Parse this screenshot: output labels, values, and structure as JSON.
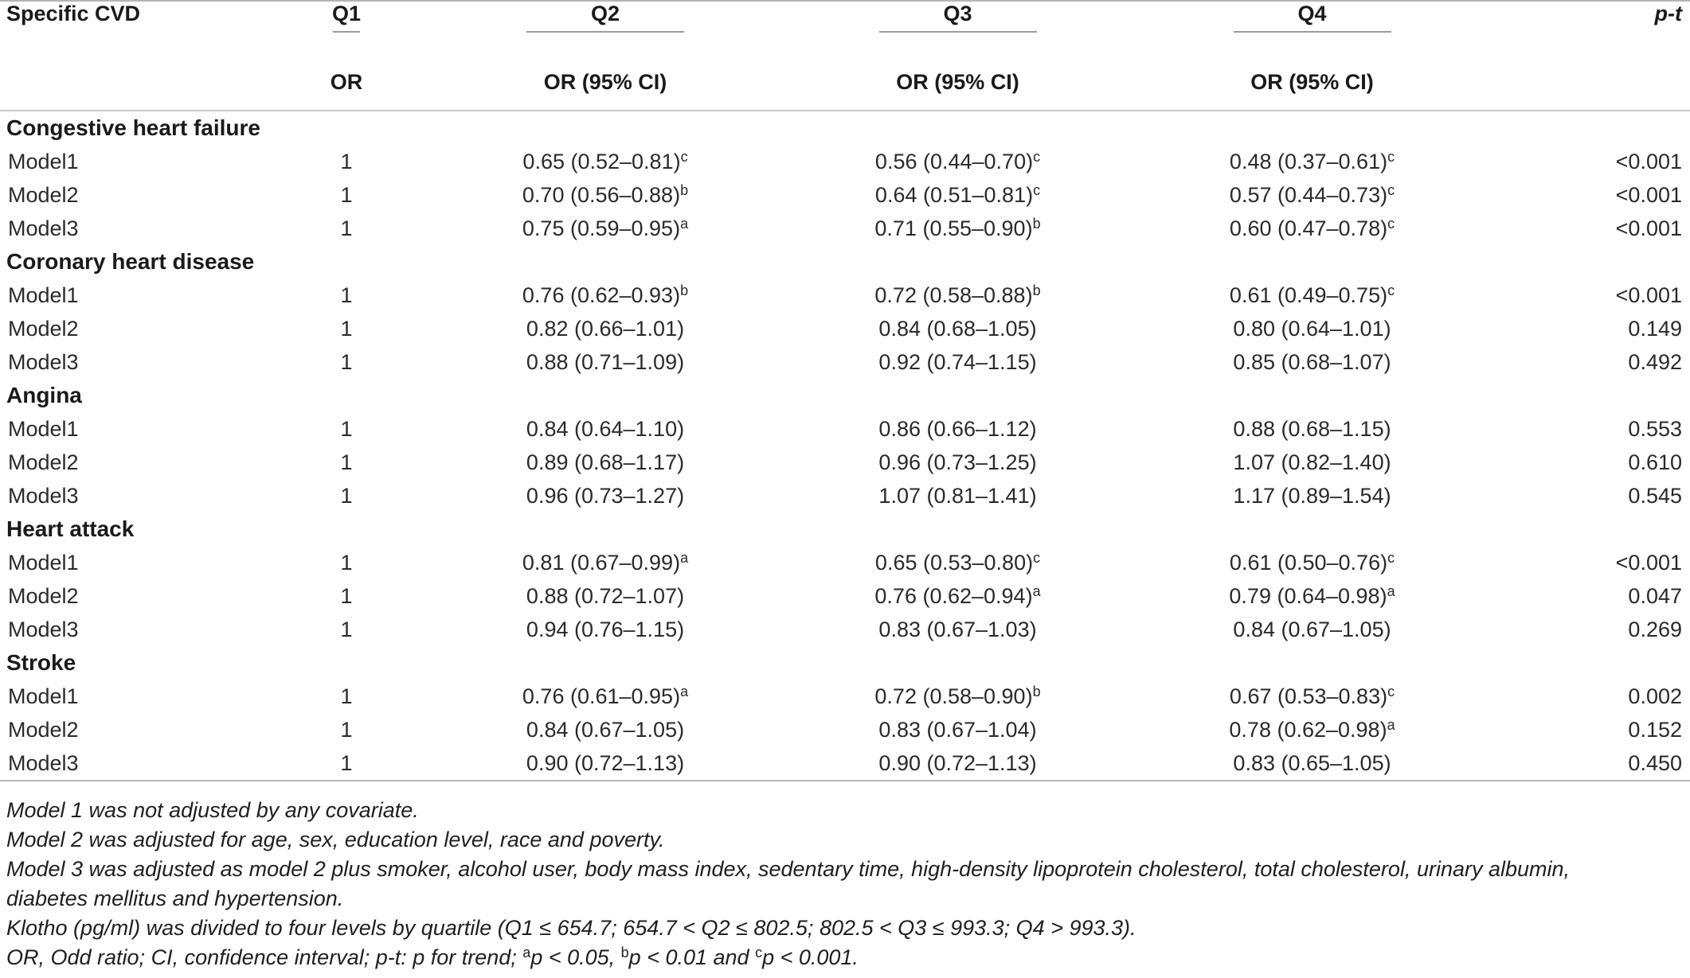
{
  "header": {
    "col_specific": "Specific CVD",
    "q1": "Q1",
    "q2": "Q2",
    "q3": "Q3",
    "q4": "Q4",
    "pt": "p-t",
    "q1_sub": "OR",
    "q2_sub": "OR (95% CI)",
    "q3_sub": "OR (95% CI)",
    "q4_sub": "OR (95% CI)"
  },
  "groups": [
    {
      "name": "Congestive heart failure",
      "rows": [
        {
          "model": "Model1",
          "q1": "1",
          "q2": "0.65 (0.52–0.81)",
          "q2s": "c",
          "q3": "0.56 (0.44–0.70)",
          "q3s": "c",
          "q4": "0.48 (0.37–0.61)",
          "q4s": "c",
          "p": "<0.001"
        },
        {
          "model": "Model2",
          "q1": "1",
          "q2": "0.70 (0.56–0.88)",
          "q2s": "b",
          "q3": "0.64 (0.51–0.81)",
          "q3s": "c",
          "q4": "0.57 (0.44–0.73)",
          "q4s": "c",
          "p": "<0.001"
        },
        {
          "model": "Model3",
          "q1": "1",
          "q2": "0.75 (0.59–0.95)",
          "q2s": "a",
          "q3": "0.71 (0.55–0.90)",
          "q3s": "b",
          "q4": "0.60 (0.47–0.78)",
          "q4s": "c",
          "p": "<0.001"
        }
      ]
    },
    {
      "name": "Coronary heart disease",
      "rows": [
        {
          "model": "Model1",
          "q1": "1",
          "q2": "0.76 (0.62–0.93)",
          "q2s": "b",
          "q3": "0.72 (0.58–0.88)",
          "q3s": "b",
          "q4": "0.61 (0.49–0.75)",
          "q4s": "c",
          "p": "<0.001"
        },
        {
          "model": "Model2",
          "q1": "1",
          "q2": "0.82 (0.66–1.01)",
          "q2s": "",
          "q3": "0.84 (0.68–1.05)",
          "q3s": "",
          "q4": "0.80 (0.64–1.01)",
          "q4s": "",
          "p": "0.149"
        },
        {
          "model": "Model3",
          "q1": "1",
          "q2": "0.88 (0.71–1.09)",
          "q2s": "",
          "q3": "0.92 (0.74–1.15)",
          "q3s": "",
          "q4": "0.85 (0.68–1.07)",
          "q4s": "",
          "p": "0.492"
        }
      ]
    },
    {
      "name": "Angina",
      "rows": [
        {
          "model": "Model1",
          "q1": "1",
          "q2": "0.84 (0.64–1.10)",
          "q2s": "",
          "q3": "0.86 (0.66–1.12)",
          "q3s": "",
          "q4": "0.88 (0.68–1.15)",
          "q4s": "",
          "p": "0.553"
        },
        {
          "model": "Model2",
          "q1": "1",
          "q2": "0.89 (0.68–1.17)",
          "q2s": "",
          "q3": "0.96 (0.73–1.25)",
          "q3s": "",
          "q4": "1.07 (0.82–1.40)",
          "q4s": "",
          "p": "0.610"
        },
        {
          "model": "Model3",
          "q1": "1",
          "q2": "0.96 (0.73–1.27)",
          "q2s": "",
          "q3": "1.07 (0.81–1.41)",
          "q3s": "",
          "q4": "1.17 (0.89–1.54)",
          "q4s": "",
          "p": "0.545"
        }
      ]
    },
    {
      "name": "Heart attack",
      "rows": [
        {
          "model": "Model1",
          "q1": "1",
          "q2": "0.81 (0.67–0.99)",
          "q2s": "a",
          "q3": "0.65 (0.53–0.80)",
          "q3s": "c",
          "q4": "0.61 (0.50–0.76)",
          "q4s": "c",
          "p": "<0.001"
        },
        {
          "model": "Model2",
          "q1": "1",
          "q2": "0.88 (0.72–1.07)",
          "q2s": "",
          "q3": "0.76 (0.62–0.94)",
          "q3s": "a",
          "q4": "0.79 (0.64–0.98)",
          "q4s": "a",
          "p": "0.047"
        },
        {
          "model": "Model3",
          "q1": "1",
          "q2": "0.94 (0.76–1.15)",
          "q2s": "",
          "q3": "0.83 (0.67–1.03)",
          "q3s": "",
          "q4": "0.84 (0.67–1.05)",
          "q4s": "",
          "p": "0.269"
        }
      ]
    },
    {
      "name": "Stroke",
      "rows": [
        {
          "model": "Model1",
          "q1": "1",
          "q2": "0.76 (0.61–0.95)",
          "q2s": "a",
          "q3": "0.72 (0.58–0.90)",
          "q3s": "b",
          "q4": "0.67 (0.53–0.83)",
          "q4s": "c",
          "p": "0.002"
        },
        {
          "model": "Model2",
          "q1": "1",
          "q2": "0.84 (0.67–1.05)",
          "q2s": "",
          "q3": "0.83 (0.67–1.04)",
          "q3s": "",
          "q4": "0.78 (0.62–0.98)",
          "q4s": "a",
          "p": "0.152"
        },
        {
          "model": "Model3",
          "q1": "1",
          "q2": "0.90 (0.72–1.13)",
          "q2s": "",
          "q3": "0.90 (0.72–1.13)",
          "q3s": "",
          "q4": "0.83 (0.65–1.05)",
          "q4s": "",
          "p": "0.450"
        }
      ]
    }
  ],
  "notes": {
    "n1": "Model 1 was not adjusted by any covariate.",
    "n2": "Model 2 was adjusted for age, sex, education level, race and poverty.",
    "n3": "Model 3 was adjusted as model 2 plus smoker, alcohol user, body mass index, sedentary time, high-density lipoprotein cholesterol, total cholesterol, urinary albumin,",
    "n4": "diabetes mellitus and hypertension.",
    "n5": "Klotho (pg/ml) was divided to four levels by quartile (Q1 ≤ 654.7; 654.7 < Q2 ≤ 802.5; 802.5 < Q3 ≤ 993.3; Q4 > 993.3).",
    "n6_a": "OR, Odd ratio; CI, confidence interval; p-t: p for trend; ",
    "n6_sa": "a",
    "n6_b": "p < 0.05, ",
    "n6_sb": "b",
    "n6_c": "p < 0.01 and ",
    "n6_sc": "c",
    "n6_d": "p < 0.001."
  }
}
